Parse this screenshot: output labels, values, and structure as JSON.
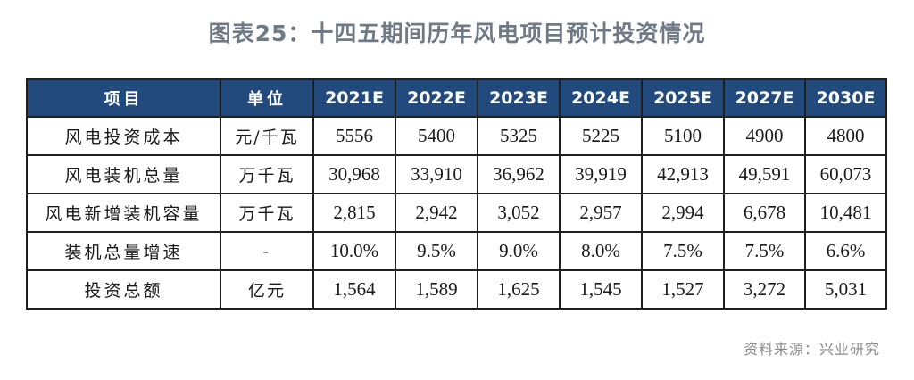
{
  "title": "图表25：十四五期间历年风电项目预计投资情况",
  "table": {
    "headers": {
      "item": "项目",
      "unit": "单位",
      "years": [
        "2021E",
        "2022E",
        "2023E",
        "2024E",
        "2025E",
        "2027E",
        "2030E"
      ]
    },
    "rows": [
      {
        "label": "风电投资成本",
        "unit": "元/千瓦",
        "values": [
          "5556",
          "5400",
          "5325",
          "5225",
          "5100",
          "4900",
          "4800"
        ]
      },
      {
        "label": "风电装机总量",
        "unit": "万千瓦",
        "values": [
          "30,968",
          "33,910",
          "36,962",
          "39,919",
          "42,913",
          "49,591",
          "60,073"
        ]
      },
      {
        "label": "风电新增装机容量",
        "unit": "万千瓦",
        "values": [
          "2,815",
          "2,942",
          "3,052",
          "2,957",
          "2,994",
          "6,678",
          "10,481"
        ]
      },
      {
        "label": "装机总量增速",
        "unit": "-",
        "values": [
          "10.0%",
          "9.5%",
          "9.0%",
          "8.0%",
          "7.5%",
          "7.5%",
          "6.6%"
        ]
      },
      {
        "label": "投资总额",
        "unit": "亿元",
        "values": [
          "1,564",
          "1,589",
          "1,625",
          "1,545",
          "1,527",
          "3,272",
          "5,031"
        ]
      }
    ]
  },
  "source": "资料来源：兴业研究",
  "colors": {
    "header_bg": "#234a7d",
    "header_text": "#ffffff",
    "title_text": "#6f7a85",
    "source_text": "#8a8a8a"
  }
}
